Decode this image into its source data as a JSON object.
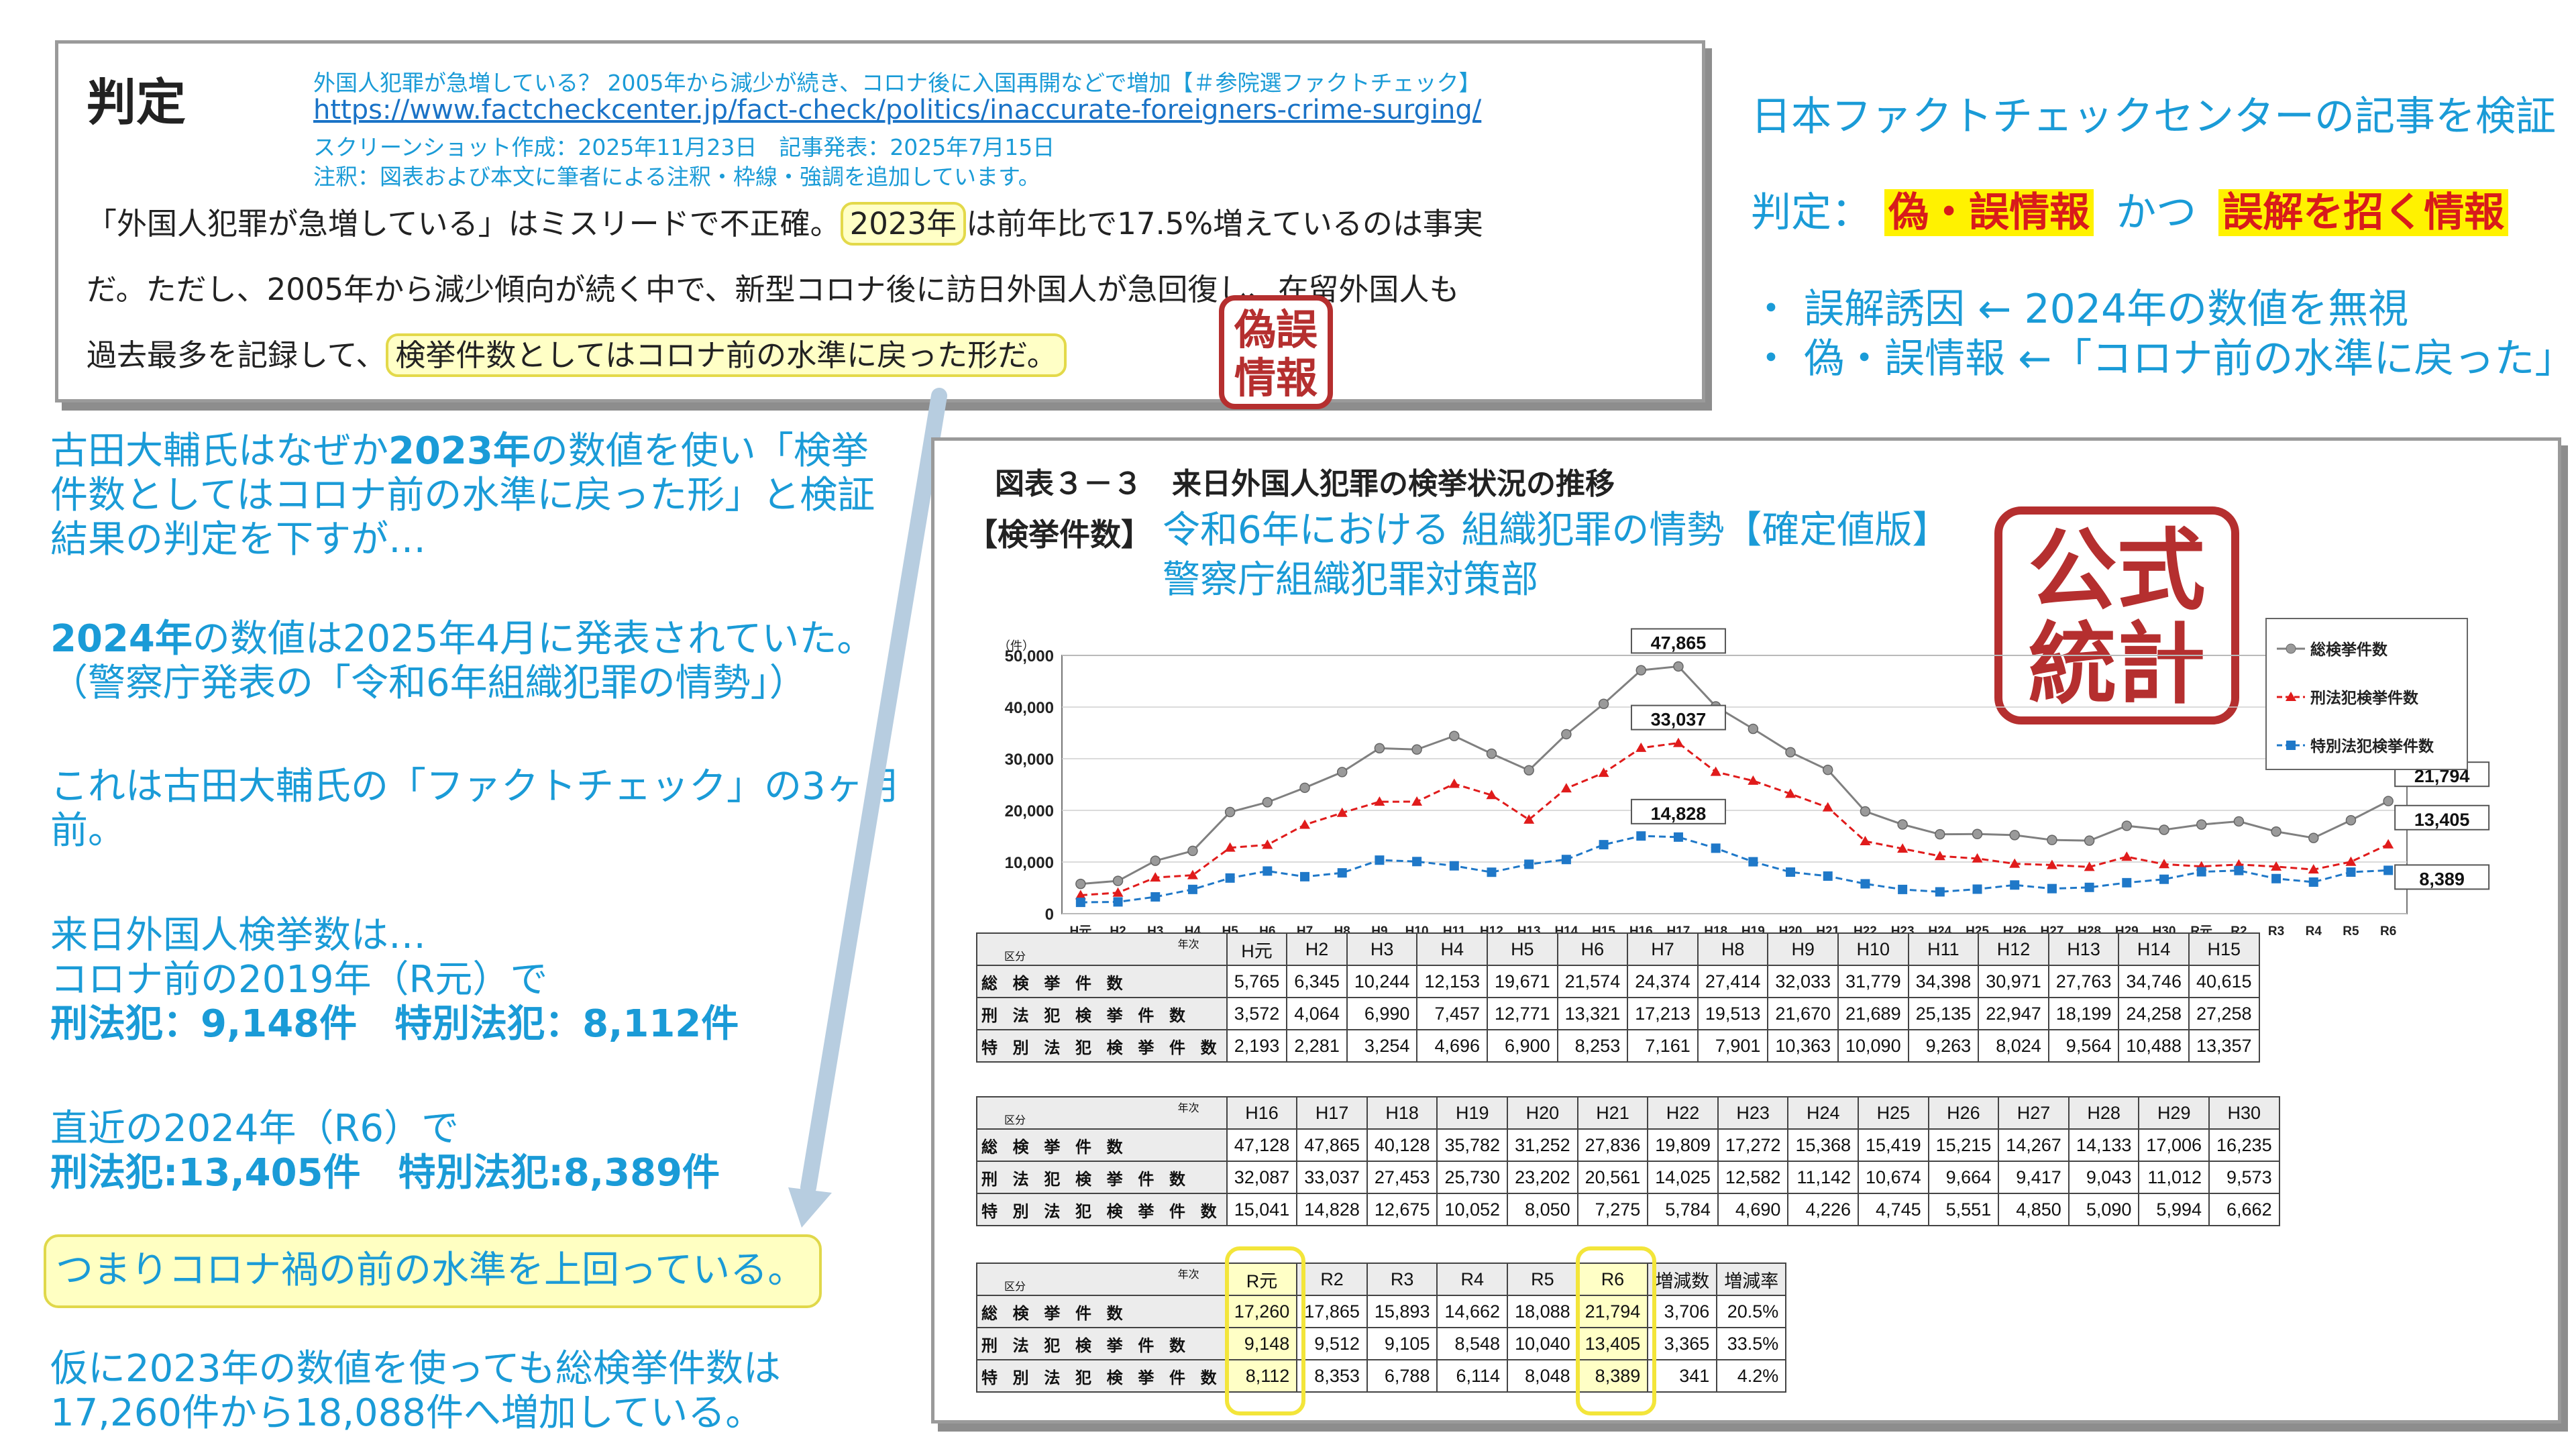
{
  "article": {
    "verdict_heading": "判定",
    "meta_title": "外国人犯罪が急増している？ 2005年から減少が続き、コロナ後に入国再開などで増加【＃参院選ファクトチェック】",
    "url": "https://www.factcheckcenter.jp/fact-check/politics/inaccurate-foreigners-crime-surging/",
    "screenshot_info": "スクリーンショット作成：2025年11月23日　記事発表：2025年7月15日",
    "note": "注釈：図表および本文に筆者による注釈・枠線・強調を追加しています。",
    "line1_a": "「外国人犯罪が急増している」はミスリードで不正確。",
    "line1_hl": "2023年",
    "line1_b": "は前年比で17.5%増えているのは事実",
    "line2": "だ。ただし、2005年から減少傾向が続く中で、新型コロナ後に訪日外国人が急回復し、在留外国人も",
    "line3_a": "過去最多を記録して、",
    "line3_hl": "検挙件数としてはコロナ前の水準に戻った形だ。",
    "stamp": [
      "偽誤",
      "情報"
    ]
  },
  "summary": {
    "title": "日本ファクトチェックセンターの記事を検証",
    "verdict_prefix": "判定：",
    "verdict_a": "偽・誤情報",
    "verdict_mid": "かつ",
    "verdict_b": "誤解を招く情報",
    "point1": "・ 誤解誘因 ← 2024年の数値を無視",
    "point2": "・ 偽・誤情報 ←「コロナ前の水準に戻った」"
  },
  "commentary": {
    "p1_a": "古田大輔氏はなぜか",
    "p1_b": "2023年",
    "p1_c": "の数値を使い「検挙件数としてはコロナ前の水準に戻った形」と検証結果の判定を下すが…",
    "p2_a": "2024年",
    "p2_b": "の数値は2025年4月に発表されていた。（警察庁発表の「令和6年組織犯罪の情勢」）",
    "p3": "これは古田大輔氏の「ファクトチェック」の3ヶ月前。",
    "p4_l1": "来日外国人検挙数は…",
    "p4_l2": "コロナ前の2019年（R元）で",
    "p4_l3": "刑法犯：9,148件　特別法犯：8,112件",
    "p5_l1": "直近の2024年（R6）で",
    "p5_l2": "刑法犯:13,405件　特別法犯:8,389件",
    "conclusion": "つまりコロナ禍の前の水準を上回っている。",
    "p6": "仮に2023年の数値を使っても総検挙件数は17,260件から18,088件へ増加している。"
  },
  "figure": {
    "title": "図表３－３　来日外国人犯罪の検挙状況の推移",
    "subtitle": "【検挙件数】",
    "source_l1": "令和6年における 組織犯罪の情勢【確定値版】",
    "source_l2": "警察庁組織犯罪対策部",
    "stamp": [
      "公式",
      "統計"
    ]
  },
  "chart_data": {
    "type": "line",
    "ylabel": "（件）",
    "ylim": [
      0,
      50000
    ],
    "yticks": [
      "0",
      "10,000",
      "20,000",
      "30,000",
      "40,000",
      "50,000"
    ],
    "categories": [
      "H元",
      "H2",
      "H3",
      "H4",
      "H5",
      "H6",
      "H7",
      "H8",
      "H9",
      "H10",
      "H11",
      "H12",
      "H13",
      "H14",
      "H15",
      "H16",
      "H17",
      "H18",
      "H19",
      "H20",
      "H21",
      "H22",
      "H23",
      "H24",
      "H25",
      "H26",
      "H27",
      "H28",
      "H29",
      "H30",
      "R元",
      "R2",
      "R3",
      "R4",
      "R5",
      "R6"
    ],
    "series": [
      {
        "name": "総検挙件数",
        "color": "#808080",
        "values": [
          5765,
          6345,
          10244,
          12153,
          19671,
          21574,
          24374,
          27414,
          32033,
          31779,
          34398,
          30971,
          27763,
          34746,
          40615,
          47128,
          47865,
          40128,
          35782,
          31252,
          27836,
          19809,
          17272,
          15368,
          15419,
          15215,
          14267,
          14133,
          17006,
          16235,
          17260,
          17865,
          15893,
          14662,
          18088,
          21794
        ]
      },
      {
        "name": "刑法犯検挙件数",
        "color": "#e01b1b",
        "values": [
          3572,
          4064,
          6990,
          7457,
          12771,
          13321,
          17213,
          19513,
          21670,
          21689,
          25135,
          22947,
          18199,
          24258,
          27258,
          32087,
          33037,
          27453,
          25730,
          23202,
          20561,
          14025,
          12582,
          11142,
          10674,
          9664,
          9417,
          9043,
          11012,
          9573,
          9148,
          9512,
          9105,
          8548,
          10040,
          13405
        ]
      },
      {
        "name": "特別法犯検挙件数",
        "color": "#1f78c8",
        "values": [
          2193,
          2281,
          3254,
          4696,
          6900,
          8253,
          7161,
          7901,
          10363,
          10090,
          9263,
          8024,
          9564,
          10488,
          13357,
          15041,
          14828,
          12675,
          10052,
          8050,
          7275,
          5784,
          4690,
          4226,
          4745,
          5551,
          4850,
          5090,
          5994,
          6662,
          8112,
          8353,
          6788,
          6114,
          8048,
          8389
        ]
      }
    ],
    "data_labels": [
      {
        "series": 0,
        "x": "H17",
        "text": "47,865"
      },
      {
        "series": 1,
        "x": "H17",
        "text": "33,037"
      },
      {
        "series": 2,
        "x": "H17",
        "text": "14,828"
      },
      {
        "series": 0,
        "x": "R6",
        "text": "21,794"
      },
      {
        "series": 1,
        "x": "R6",
        "text": "13,405"
      },
      {
        "series": 2,
        "x": "R6",
        "text": "8,389"
      }
    ],
    "legend_position": "top-right"
  },
  "tables": {
    "corner_top": "年次",
    "corner_bottom": "区分",
    "row_labels": [
      "総 検 挙 件 数",
      "刑 法 犯 検 挙 件 数",
      "特 別 法 犯 検 挙 件 数"
    ],
    "t1": {
      "headers": [
        "H元",
        "H2",
        "H3",
        "H4",
        "H5",
        "H6",
        "H7",
        "H8",
        "H9",
        "H10",
        "H11",
        "H12",
        "H13",
        "H14",
        "H15"
      ],
      "rows": [
        [
          "5,765",
          "6,345",
          "10,244",
          "12,153",
          "19,671",
          "21,574",
          "24,374",
          "27,414",
          "32,033",
          "31,779",
          "34,398",
          "30,971",
          "27,763",
          "34,746",
          "40,615"
        ],
        [
          "3,572",
          "4,064",
          "6,990",
          "7,457",
          "12,771",
          "13,321",
          "17,213",
          "19,513",
          "21,670",
          "21,689",
          "25,135",
          "22,947",
          "18,199",
          "24,258",
          "27,258"
        ],
        [
          "2,193",
          "2,281",
          "3,254",
          "4,696",
          "6,900",
          "8,253",
          "7,161",
          "7,901",
          "10,363",
          "10,090",
          "9,263",
          "8,024",
          "9,564",
          "10,488",
          "13,357"
        ]
      ]
    },
    "t2": {
      "headers": [
        "H16",
        "H17",
        "H18",
        "H19",
        "H20",
        "H21",
        "H22",
        "H23",
        "H24",
        "H25",
        "H26",
        "H27",
        "H28",
        "H29",
        "H30"
      ],
      "rows": [
        [
          "47,128",
          "47,865",
          "40,128",
          "35,782",
          "31,252",
          "27,836",
          "19,809",
          "17,272",
          "15,368",
          "15,419",
          "15,215",
          "14,267",
          "14,133",
          "17,006",
          "16,235"
        ],
        [
          "32,087",
          "33,037",
          "27,453",
          "25,730",
          "23,202",
          "20,561",
          "14,025",
          "12,582",
          "11,142",
          "10,674",
          "9,664",
          "9,417",
          "9,043",
          "11,012",
          "9,573"
        ],
        [
          "15,041",
          "14,828",
          "12,675",
          "10,052",
          "8,050",
          "7,275",
          "5,784",
          "4,690",
          "4,226",
          "4,745",
          "5,551",
          "4,850",
          "5,090",
          "5,994",
          "6,662"
        ]
      ]
    },
    "t3": {
      "headers": [
        "R元",
        "R2",
        "R3",
        "R4",
        "R5",
        "R6",
        "増減数",
        "増減率"
      ],
      "rows": [
        [
          "17,260",
          "17,865",
          "15,893",
          "14,662",
          "18,088",
          "21,794",
          "3,706",
          "20.5%"
        ],
        [
          "9,148",
          "9,512",
          "9,105",
          "8,548",
          "10,040",
          "13,405",
          "3,365",
          "33.5%"
        ],
        [
          "8,112",
          "8,353",
          "6,788",
          "6,114",
          "8,048",
          "8,389",
          "341",
          "4.2%"
        ]
      ]
    }
  }
}
